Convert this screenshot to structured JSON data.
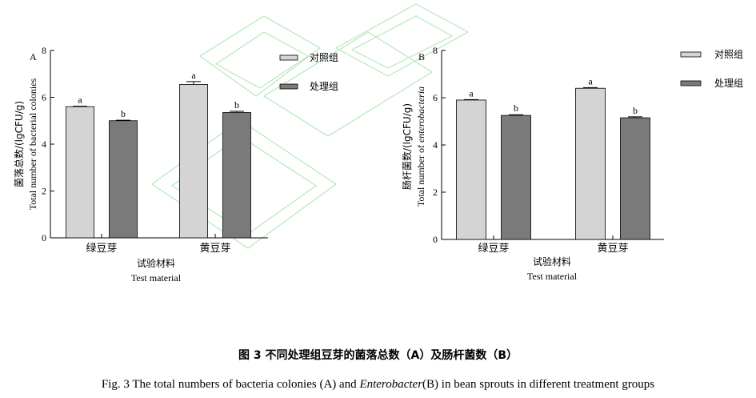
{
  "chart_data": [
    {
      "type": "bar",
      "panel_label": "A",
      "categories": [
        "绿豆芽",
        "黄豆芽"
      ],
      "series": [
        {
          "name": "对照组",
          "values": [
            5.6,
            6.55
          ],
          "errors": [
            0.02,
            0.12
          ],
          "sig": [
            "a",
            "a"
          ],
          "color": "#d4d4d4"
        },
        {
          "name": "处理组",
          "values": [
            5.0,
            5.35
          ],
          "errors": [
            0.02,
            0.05
          ],
          "sig": [
            "b",
            "b"
          ],
          "color": "#7a7a7a"
        }
      ],
      "ylabel_zh": "菌落总数/(lgCFU/g)",
      "ylabel_en": "Total number of bacterial colonies",
      "xlabel_zh": "试验材料",
      "xlabel_en": "Test material",
      "yticks": [
        "0",
        "2",
        "4",
        "6",
        "8"
      ],
      "ylim": [
        0,
        8
      ],
      "legend": "right"
    },
    {
      "type": "bar",
      "panel_label": "B",
      "categories": [
        "绿豆芽",
        "黄豆芽"
      ],
      "series": [
        {
          "name": "对照组",
          "values": [
            5.9,
            6.4
          ],
          "errors": [
            0.02,
            0.03
          ],
          "sig": [
            "a",
            "a"
          ],
          "color": "#d4d4d4"
        },
        {
          "name": "处理组",
          "values": [
            5.25,
            5.15
          ],
          "errors": [
            0.03,
            0.04
          ],
          "sig": [
            "b",
            "b"
          ],
          "color": "#7a7a7a"
        }
      ],
      "ylabel_zh": "肠杆菌数/(lgCFU/g)",
      "ylabel_en_prefix": "Total number of ",
      "ylabel_en_italic": "enterobacteria",
      "xlabel_zh": "试验材料",
      "xlabel_en": "Test material",
      "yticks": [
        "0",
        "2",
        "4",
        "6",
        "8"
      ],
      "ylim": [
        0,
        8
      ],
      "legend": "right"
    }
  ],
  "figure": {
    "title": "图 3 不同处理组豆芽的菌落总数（A）及肠杆菌数（B）",
    "caption_prefix": "Fig.  3 The total numbers of bacteria colonies (A) and ",
    "caption_italic": "Enterobacter",
    "caption_suffix": "(B) in bean sprouts in different treatment groups"
  }
}
